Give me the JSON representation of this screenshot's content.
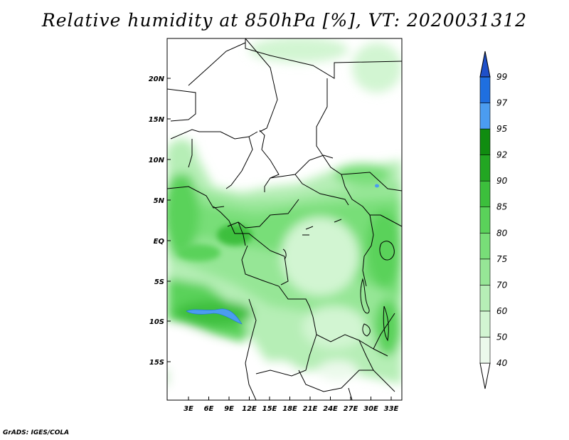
{
  "title": "Relative humidity at 850hPa [%], VT: 2020031312",
  "credit": "GrADS: IGES/COLA",
  "map": {
    "lat_ticks": [
      "20N",
      "15N",
      "10N",
      "5N",
      "EQ",
      "5S",
      "10S",
      "15S"
    ],
    "lon_ticks": [
      "3E",
      "6E",
      "9E",
      "12E",
      "15E",
      "18E",
      "21E",
      "24E",
      "27E",
      "30E",
      "33E"
    ]
  },
  "colorbar": {
    "levels": [
      "40",
      "50",
      "60",
      "70",
      "75",
      "80",
      "85",
      "90",
      "92",
      "95",
      "97",
      "99"
    ],
    "colors": [
      "#ebf9eb",
      "#d2f5d2",
      "#b6eeb6",
      "#96e696",
      "#78de78",
      "#5ad25a",
      "#3cbf3c",
      "#22a622",
      "#108c10",
      "#4b9cf0",
      "#1f6fe0",
      "#1f50c8"
    ]
  }
}
